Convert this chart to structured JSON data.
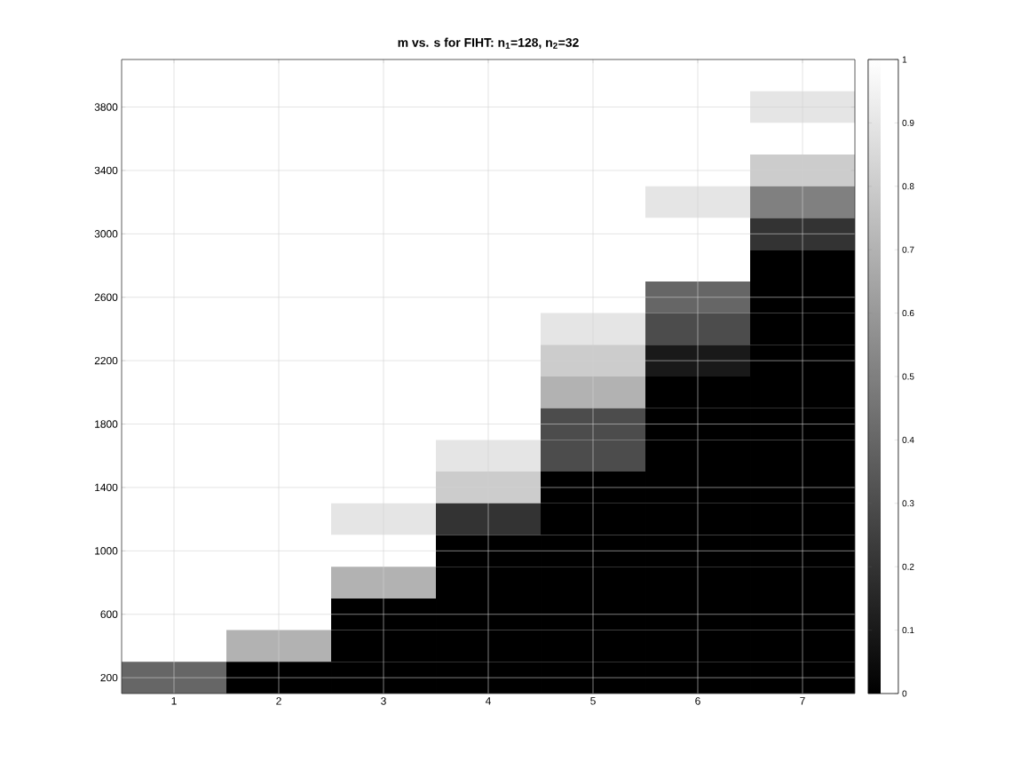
{
  "chart_data": {
    "type": "heatmap",
    "title": "m vs. s for FIHT:  n$_{1}$=128, n$_{2}$=32",
    "categories": [
      "1",
      "2",
      "3",
      "4",
      "5",
      "6",
      "7"
    ],
    "y_categories": [
      null,
      "3800",
      null,
      "3400",
      null,
      "3000",
      null,
      "2600",
      null,
      "2200",
      null,
      "1800",
      null,
      "1400",
      null,
      "1000",
      null,
      "600",
      null,
      "200"
    ],
    "cells": [
      [
        1,
        1,
        1,
        1,
        1,
        1,
        1
      ],
      [
        1,
        1,
        1,
        1,
        1,
        1,
        0.9
      ],
      [
        1,
        1,
        1,
        1,
        1,
        1,
        1
      ],
      [
        1,
        1,
        1,
        1,
        1,
        1,
        0.8
      ],
      [
        1,
        1,
        1,
        1,
        1,
        0.9,
        0.5
      ],
      [
        1,
        1,
        1,
        1,
        1,
        1,
        0.2
      ],
      [
        1,
        1,
        1,
        1,
        1,
        1,
        0
      ],
      [
        1,
        1,
        1,
        1,
        1,
        0.4,
        0
      ],
      [
        1,
        1,
        1,
        1,
        0.9,
        0.3,
        0
      ],
      [
        1,
        1,
        1,
        1,
        0.8,
        0.1,
        0
      ],
      [
        1,
        1,
        1,
        1,
        0.7,
        0,
        0
      ],
      [
        1,
        1,
        1,
        1,
        0.3,
        0,
        0
      ],
      [
        1,
        1,
        1,
        0.9,
        0.3,
        0,
        0
      ],
      [
        1,
        1,
        1,
        0.8,
        0,
        0,
        0
      ],
      [
        1,
        1,
        0.9,
        0.2,
        0,
        0,
        0
      ],
      [
        1,
        1,
        1,
        0,
        0,
        0,
        0
      ],
      [
        1,
        1,
        0.7,
        0,
        0,
        0,
        0
      ],
      [
        1,
        1,
        0,
        0,
        0,
        0,
        0
      ],
      [
        1,
        0.7,
        0,
        0,
        0,
        0,
        0
      ],
      [
        0.4,
        0,
        0,
        0,
        0,
        0,
        0
      ]
    ],
    "clim": [
      0,
      1
    ],
    "cticks": [
      0,
      0.1,
      0.2,
      0.3,
      0.4,
      0.5,
      0.6,
      0.7,
      0.8,
      0.9,
      1
    ],
    "grid": true
  }
}
